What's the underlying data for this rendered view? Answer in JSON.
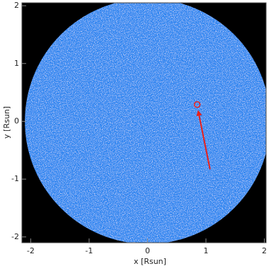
{
  "chart_data": {
    "type": "image",
    "xlabel": "x [Rsun]",
    "ylabel": "y [Rsun]",
    "xlim": [
      -2.15,
      2.03
    ],
    "ylim": [
      -2.1,
      2.05
    ],
    "xticks": [
      -2,
      -1,
      0,
      1,
      2
    ],
    "yticks": [
      -2,
      -1,
      0,
      1,
      2
    ],
    "background": "#000000",
    "disk": {
      "x": 0,
      "y": 0,
      "radius": 2.1,
      "color": "#2f86f0"
    },
    "marker": {
      "x": 0.85,
      "y": 0.29,
      "color": "#e8201c"
    },
    "arrow": {
      "x": [
        1.07,
        0.87
      ],
      "y": [
        -0.83,
        0.17
      ],
      "color": "#e8201c"
    }
  }
}
